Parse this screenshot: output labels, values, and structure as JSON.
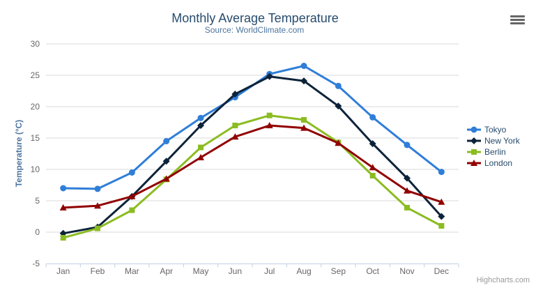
{
  "chart_data": {
    "type": "line",
    "title": "Monthly Average Temperature",
    "subtitle": "Source: WorldClimate.com",
    "xlabel": "",
    "ylabel": "Temperature (°C)",
    "categories": [
      "Jan",
      "Feb",
      "Mar",
      "Apr",
      "May",
      "Jun",
      "Jul",
      "Aug",
      "Sep",
      "Oct",
      "Nov",
      "Dec"
    ],
    "ylim": [
      -5,
      30
    ],
    "yticks": [
      -5,
      0,
      5,
      10,
      15,
      20,
      25,
      30
    ],
    "grid": true,
    "legend_position": "right",
    "series": [
      {
        "name": "Tokyo",
        "color": "#2f7ed8",
        "marker": "circle",
        "values": [
          7.0,
          6.9,
          9.5,
          14.5,
          18.2,
          21.5,
          25.2,
          26.5,
          23.3,
          18.3,
          13.9,
          9.6
        ]
      },
      {
        "name": "New York",
        "color": "#0d233a",
        "marker": "diamond",
        "values": [
          -0.2,
          0.8,
          5.7,
          11.3,
          17.0,
          22.0,
          24.8,
          24.1,
          20.1,
          14.1,
          8.6,
          2.5
        ]
      },
      {
        "name": "Berlin",
        "color": "#8bbc21",
        "marker": "square",
        "values": [
          -0.9,
          0.6,
          3.5,
          8.4,
          13.5,
          17.0,
          18.6,
          17.9,
          14.3,
          9.0,
          3.9,
          1.0
        ]
      },
      {
        "name": "London",
        "color": "#910000",
        "marker": "triangle",
        "values": [
          3.9,
          4.2,
          5.7,
          8.5,
          11.9,
          15.2,
          17.0,
          16.6,
          14.2,
          10.3,
          6.6,
          4.8
        ]
      }
    ]
  },
  "ui": {
    "credits": "Highcharts.com",
    "menu_icon": "hamburger-menu-icon"
  },
  "colors": {
    "background": "#ffffff",
    "title": "#274b6d",
    "subtitle": "#4d759e",
    "axis_title": "#4d759e",
    "axis_labels": "#666666",
    "grid": "#d8d8d8",
    "axis_line": "#c0d0e0",
    "legend_text": "#274b6d",
    "credits": "#999999",
    "menu_icon": "#666666"
  }
}
